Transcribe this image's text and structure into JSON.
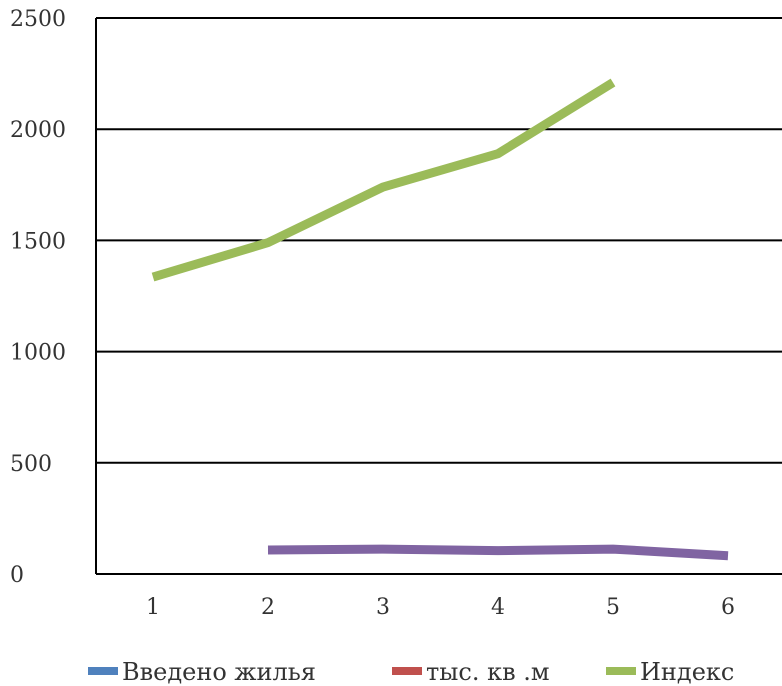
{
  "chart_data": {
    "type": "line",
    "categories": [
      "1",
      "2",
      "3",
      "4",
      "5",
      "6"
    ],
    "y_ticks": [
      "0",
      "500",
      "1000",
      "1500",
      "2000",
      "2500"
    ],
    "ylim": [
      0,
      2500
    ],
    "grid": true,
    "legend_position": "bottom",
    "series": [
      {
        "name": "Введено жилья",
        "color": "#4f81bd",
        "values": [
          null,
          null,
          null,
          null,
          null,
          null
        ]
      },
      {
        "name": "тыс. кв .м",
        "color": "#c0504d",
        "values": [
          null,
          null,
          null,
          null,
          null,
          null
        ]
      },
      {
        "name": "Индекс",
        "color": "#9bbb59",
        "values": [
          1335,
          1490,
          1740,
          1890,
          2210,
          null
        ]
      },
      {
        "name": "",
        "color": "#8064a2",
        "values": [
          null,
          108,
          112,
          105,
          112,
          82
        ]
      }
    ]
  }
}
